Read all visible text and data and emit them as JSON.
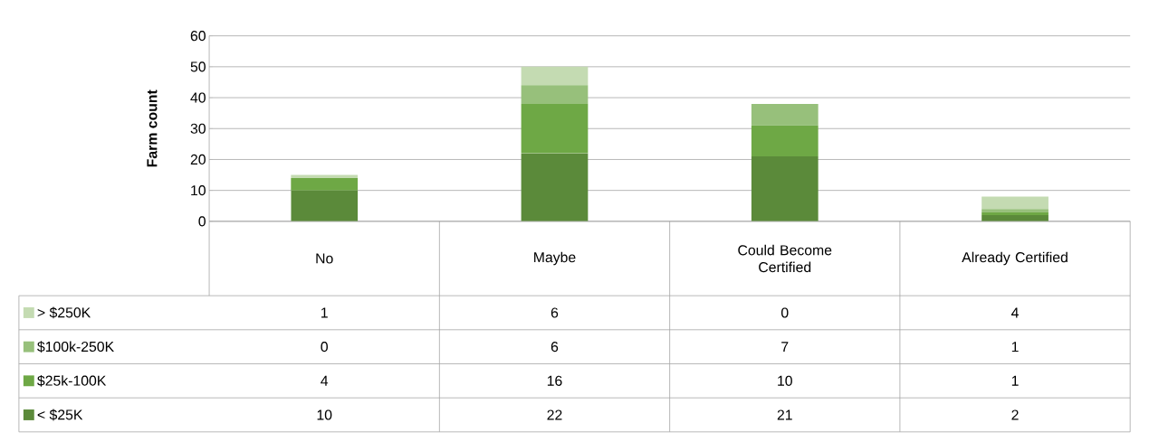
{
  "chart_data": {
    "type": "bar",
    "stacked": true,
    "ylabel": "Farm count",
    "categories": [
      "No",
      "Maybe",
      "Could Become Certified",
      "Already Certified"
    ],
    "series": [
      {
        "name": "< $25K",
        "color": "#5b8a3a",
        "values": [
          10,
          22,
          21,
          2
        ]
      },
      {
        "name": "$25k-100K",
        "color": "#6ea845",
        "values": [
          4,
          16,
          10,
          1
        ]
      },
      {
        "name": "$100k-250K",
        "color": "#97c07b",
        "values": [
          0,
          6,
          7,
          1
        ]
      },
      {
        "name": "> $250K",
        "color": "#c4dbb2",
        "values": [
          1,
          6,
          0,
          4
        ]
      }
    ],
    "ylim": [
      0,
      60
    ],
    "yticks": [
      0,
      10,
      20,
      30,
      40,
      50,
      60
    ],
    "grid": "y",
    "data_labels": true,
    "legend": "bottom left"
  }
}
